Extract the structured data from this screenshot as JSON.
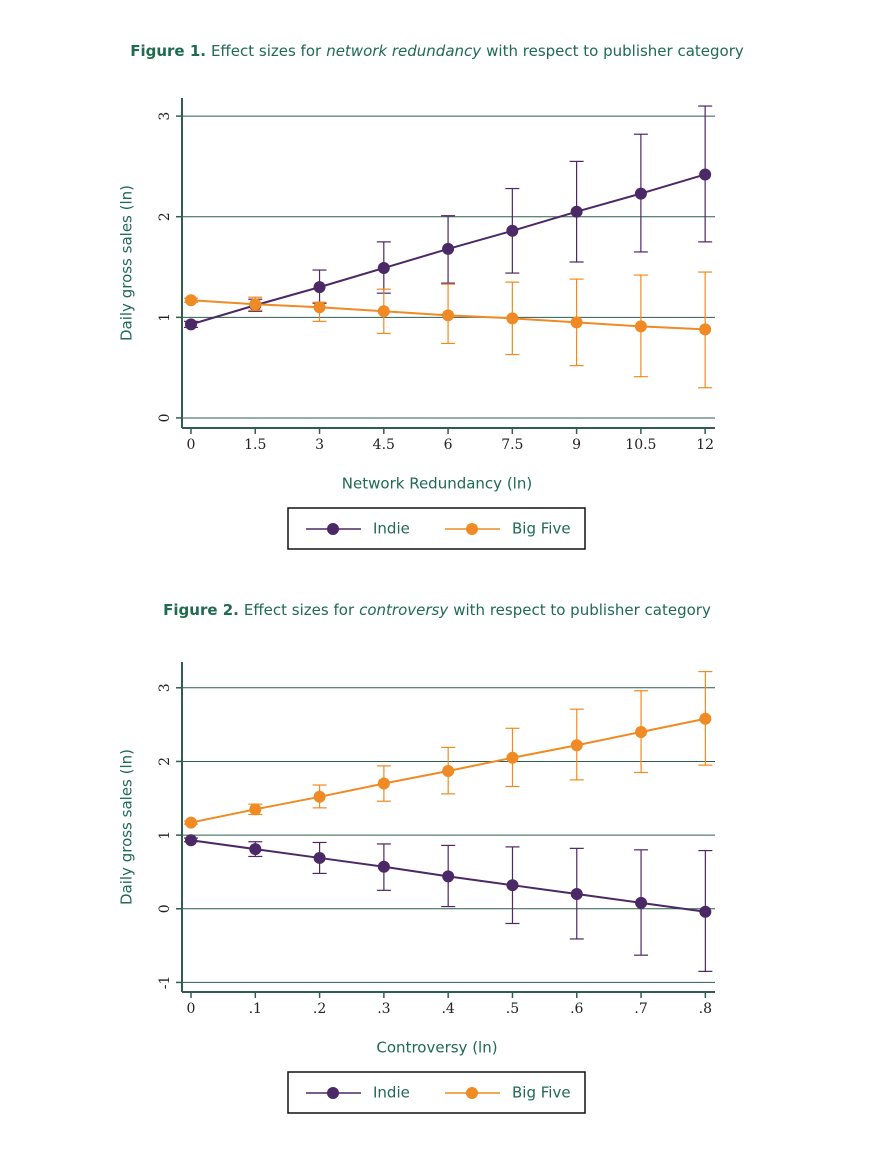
{
  "chart_data": [
    {
      "type": "line",
      "figure_label": "Figure 1.",
      "title": [
        "Effect sizes for",
        "network redundancy",
        "with respect to publisher category"
      ],
      "xlabel": "Network Redundancy (ln)",
      "ylabel": "Daily gross sales (ln)",
      "x": [
        0,
        1.5,
        3,
        4.5,
        6,
        7.5,
        9,
        10.5,
        12
      ],
      "xlim": [
        -0.21,
        12.23
      ],
      "xticks": [
        0,
        1.5,
        3,
        4.5,
        6,
        7.5,
        9,
        10.5,
        12
      ],
      "ylim": [
        -0.1,
        3.18
      ],
      "yticks": [
        0,
        1,
        2,
        3
      ],
      "grid": true,
      "legend": "bottom",
      "series": [
        {
          "name": "Indie",
          "color": "#4b2866",
          "values": [
            0.93,
            1.12,
            1.3,
            1.49,
            1.68,
            1.86,
            2.05,
            2.23,
            2.42
          ],
          "lower": [
            0.9,
            1.06,
            1.14,
            1.24,
            1.34,
            1.44,
            1.55,
            1.65,
            1.75
          ],
          "upper": [
            0.96,
            1.18,
            1.47,
            1.75,
            2.01,
            2.28,
            2.55,
            2.82,
            3.1
          ]
        },
        {
          "name": "Big Five",
          "color": "#ef8a24",
          "values": [
            1.17,
            1.13,
            1.1,
            1.06,
            1.02,
            0.99,
            0.95,
            0.91,
            0.88
          ],
          "lower": [
            1.15,
            1.07,
            0.96,
            0.84,
            0.74,
            0.63,
            0.52,
            0.41,
            0.3
          ],
          "upper": [
            1.19,
            1.2,
            1.15,
            1.28,
            1.33,
            1.35,
            1.38,
            1.42,
            1.45
          ]
        }
      ]
    },
    {
      "type": "line",
      "figure_label": "Figure 2.",
      "title": [
        "Effect sizes for",
        "controversy",
        "with respect to publisher category"
      ],
      "xlabel": "Controversy (ln)",
      "ylabel": "Daily gross sales (ln)",
      "x": [
        0,
        0.1,
        0.2,
        0.3,
        0.4,
        0.5,
        0.6,
        0.7,
        0.8
      ],
      "xlim": [
        -0.014,
        0.815
      ],
      "xticks": [
        0,
        {
          "value": 0.1,
          "label": ".1"
        },
        {
          "value": 0.2,
          "label": ".2"
        },
        {
          "value": 0.3,
          "label": ".3"
        },
        {
          "value": 0.4,
          "label": ".4"
        },
        {
          "value": 0.5,
          "label": ".5"
        },
        {
          "value": 0.6,
          "label": ".6"
        },
        {
          "value": 0.7,
          "label": ".7"
        },
        {
          "value": 0.8,
          "label": ".8"
        }
      ],
      "ylim": [
        -1.13,
        3.35
      ],
      "yticks": [
        -1,
        0,
        1,
        2,
        3
      ],
      "grid": true,
      "legend": "bottom",
      "series": [
        {
          "name": "Indie",
          "color": "#4b2866",
          "values": [
            0.93,
            0.81,
            0.69,
            0.57,
            0.44,
            0.32,
            0.2,
            0.08,
            -0.04
          ],
          "lower": [
            0.91,
            0.71,
            0.48,
            0.25,
            0.03,
            -0.2,
            -0.41,
            -0.63,
            -0.85
          ],
          "upper": [
            0.96,
            0.91,
            0.9,
            0.88,
            0.86,
            0.84,
            0.82,
            0.8,
            0.79
          ]
        },
        {
          "name": "Big Five",
          "color": "#ef8a24",
          "values": [
            1.17,
            1.35,
            1.52,
            1.7,
            1.87,
            2.05,
            2.22,
            2.4,
            2.58
          ],
          "lower": [
            1.15,
            1.28,
            1.37,
            1.46,
            1.56,
            1.66,
            1.75,
            1.85,
            1.95
          ],
          "upper": [
            1.19,
            1.42,
            1.68,
            1.94,
            2.19,
            2.45,
            2.71,
            2.96,
            3.22
          ]
        }
      ]
    }
  ]
}
